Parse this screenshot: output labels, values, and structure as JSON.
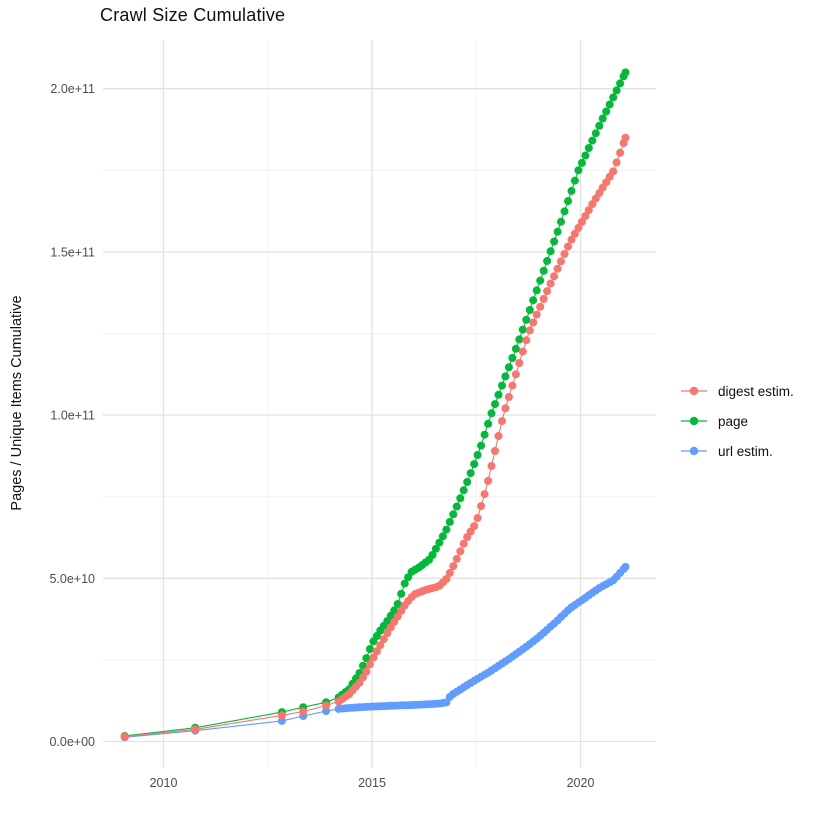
{
  "title": "Crawl Size Cumulative",
  "axes": {
    "y_label": "Pages / Unique Items Cumulative",
    "y_ticks": [
      "0.0e+00",
      "5.0e+10",
      "1.0e+11",
      "1.5e+11",
      "2.0e+11"
    ],
    "x_ticks": [
      "2010",
      "2015",
      "2020"
    ]
  },
  "legend": {
    "entries": [
      {
        "label": "digest estim.",
        "color": "#F8766D",
        "key_icon": "point-line-key-icon"
      },
      {
        "label": "page",
        "color": "#00BA38",
        "key_icon": "point-line-key-icon"
      },
      {
        "label": "url estim.",
        "color": "#619CFF",
        "key_icon": "point-line-key-icon"
      }
    ]
  },
  "colors": {
    "digest": "#F8766D",
    "page": "#00BA38",
    "url": "#619CFF",
    "grid_major": "#E2E2E2",
    "grid_minor": "#F2F2F2",
    "tick_text": "#4D4D4D",
    "background": "#FFFFFF"
  },
  "chart_data": {
    "type": "scatter",
    "title": "Crawl Size Cumulative",
    "xlabel": "",
    "ylabel": "Pages / Unique Items Cumulative",
    "x_ticks_values": [
      2010,
      2015,
      2020
    ],
    "x_minor_ticks_values": [
      2012.5,
      2017.5
    ],
    "y_ticks_values": [
      0,
      50000000000.0,
      100000000000.0,
      150000000000.0,
      200000000000.0
    ],
    "y_minor_ticks_values": [
      25000000000.0,
      75000000000.0,
      125000000000.0,
      175000000000.0
    ],
    "xlim": [
      2008.5,
      2021.8
    ],
    "ylim": [
      0,
      215000000000.0
    ],
    "grid": true,
    "legend_position": "right",
    "point_markers": true,
    "crawl_sample_spacing_years": 0.0833,
    "series": [
      {
        "name": "digest estim.",
        "color": "#F8766D",
        "points": [
          [
            2009.07,
            1500000000.0
          ],
          [
            2010.76,
            3700000000.0
          ],
          [
            2012.84,
            8000000000.0
          ],
          [
            2013.35,
            9200000000.0
          ],
          [
            2013.9,
            11000000000.0
          ],
          [
            2014.2,
            12300000000.0
          ],
          [
            2014.45,
            14500000000.0
          ],
          [
            2014.7,
            18000000000.0
          ],
          [
            2014.85,
            21000000000.0
          ],
          [
            2015.0,
            25000000000.0
          ],
          [
            2015.2,
            29500000000.0
          ],
          [
            2015.4,
            34000000000.0
          ],
          [
            2015.6,
            38000000000.0
          ],
          [
            2015.8,
            42000000000.0
          ],
          [
            2016.0,
            45000000000.0
          ],
          [
            2016.3,
            46500000000.0
          ],
          [
            2016.6,
            47500000000.0
          ],
          [
            2016.8,
            50000000000.0
          ],
          [
            2017.0,
            55000000000.0
          ],
          [
            2017.25,
            62000000000.0
          ],
          [
            2017.5,
            67000000000.0
          ],
          [
            2017.75,
            78000000000.0
          ],
          [
            2018.15,
            100000000000.0
          ],
          [
            2018.75,
            125000000000.0
          ],
          [
            2019.2,
            138000000000.0
          ],
          [
            2019.75,
            153000000000.0
          ],
          [
            2020.3,
            165000000000.0
          ],
          [
            2020.8,
            175000000000.0
          ],
          [
            2021.08,
            185000000000.0
          ]
        ]
      },
      {
        "name": "page",
        "color": "#00BA38",
        "points": [
          [
            2009.07,
            1700000000.0
          ],
          [
            2010.76,
            4200000000.0
          ],
          [
            2012.84,
            9000000000.0
          ],
          [
            2013.35,
            10500000000.0
          ],
          [
            2013.9,
            12000000000.0
          ],
          [
            2014.2,
            13500000000.0
          ],
          [
            2014.45,
            16000000000.0
          ],
          [
            2014.7,
            21000000000.0
          ],
          [
            2014.85,
            25000000000.0
          ],
          [
            2015.0,
            30000000000.0
          ],
          [
            2015.2,
            34000000000.0
          ],
          [
            2015.4,
            37500000000.0
          ],
          [
            2015.6,
            41500000000.0
          ],
          [
            2015.8,
            49000000000.0
          ],
          [
            2015.95,
            52000000000.0
          ],
          [
            2016.15,
            53500000000.0
          ],
          [
            2016.4,
            56000000000.0
          ],
          [
            2016.75,
            64000000000.0
          ],
          [
            2017.0,
            71000000000.0
          ],
          [
            2017.3,
            80000000000.0
          ],
          [
            2017.6,
            90000000000.0
          ],
          [
            2017.85,
            100000000000.0
          ],
          [
            2018.5,
            122000000000.0
          ],
          [
            2019.0,
            140000000000.0
          ],
          [
            2019.5,
            158000000000.0
          ],
          [
            2019.95,
            175000000000.0
          ],
          [
            2020.5,
            190000000000.0
          ],
          [
            2021.08,
            205000000000.0
          ]
        ]
      },
      {
        "name": "url estim.",
        "color": "#619CFF",
        "points": [
          [
            2009.07,
            1300000000.0
          ],
          [
            2010.76,
            3300000000.0
          ],
          [
            2012.84,
            6300000000.0
          ],
          [
            2013.35,
            7800000000.0
          ],
          [
            2013.9,
            9300000000.0
          ],
          [
            2014.2,
            10000000000.0
          ],
          [
            2014.6,
            10400000000.0
          ],
          [
            2015.0,
            10700000000.0
          ],
          [
            2015.6,
            11000000000.0
          ],
          [
            2016.2,
            11300000000.0
          ],
          [
            2016.6,
            11600000000.0
          ],
          [
            2016.8,
            12000000000.0
          ],
          [
            2016.88,
            14000000000.0
          ],
          [
            2017.1,
            15800000000.0
          ],
          [
            2017.5,
            19000000000.0
          ],
          [
            2017.8,
            21200000000.0
          ],
          [
            2018.3,
            25400000000.0
          ],
          [
            2018.75,
            29500000000.0
          ],
          [
            2019.0,
            32000000000.0
          ],
          [
            2019.4,
            36500000000.0
          ],
          [
            2019.75,
            40800000000.0
          ],
          [
            2020.0,
            43000000000.0
          ],
          [
            2020.45,
            47000000000.0
          ],
          [
            2020.8,
            49500000000.0
          ],
          [
            2021.08,
            53500000000.0
          ]
        ]
      }
    ]
  }
}
